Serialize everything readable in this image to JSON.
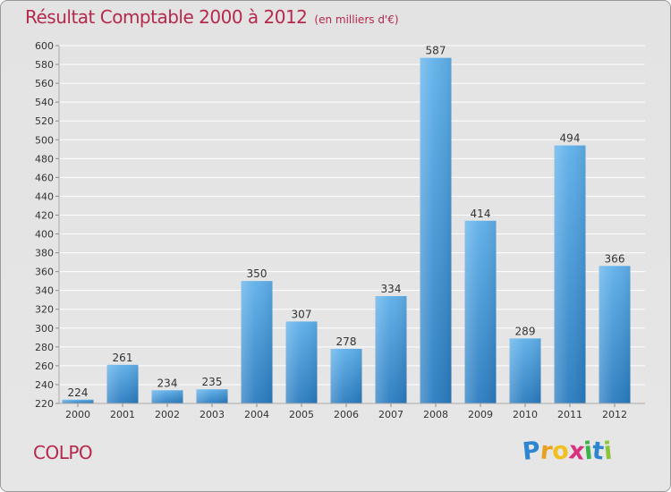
{
  "chart_data": {
    "type": "bar",
    "title": "Résultat Comptable 2000 à 2012",
    "subtitle": "(en milliers d'€)",
    "categories": [
      "2000",
      "2001",
      "2002",
      "2003",
      "2004",
      "2005",
      "2006",
      "2007",
      "2008",
      "2009",
      "2010",
      "2011",
      "2012"
    ],
    "values": [
      224,
      261,
      234,
      235,
      350,
      307,
      278,
      334,
      587,
      414,
      289,
      494,
      366
    ],
    "ylim": [
      220,
      600
    ],
    "ytick_step": 20,
    "grid": true,
    "xlabel": "",
    "ylabel": "",
    "colors": {
      "bar_top": "#5fb0ea",
      "bar_bottom": "#2a7cc0",
      "grid": "#ffffff",
      "axis_text": "#333333"
    }
  },
  "footer": {
    "town": "COLPO",
    "brand_letters": [
      "P",
      "r",
      "o",
      "x",
      "i",
      "t",
      "i"
    ],
    "brand_colors": [
      "#2f86d0",
      "#e8a020",
      "#f0c020",
      "#d93080",
      "#3bb24a",
      "#2f86d0",
      "#8cc43c"
    ]
  }
}
